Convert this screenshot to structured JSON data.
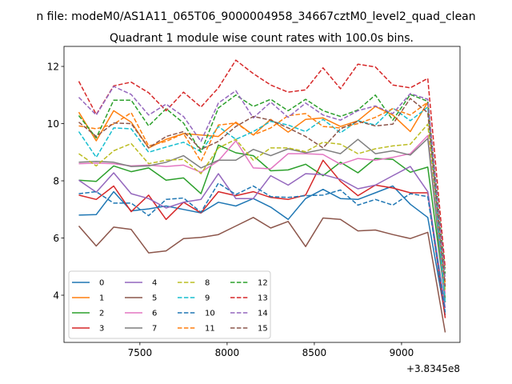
{
  "chart_data": {
    "type": "line",
    "suptitle": "n file: modeM0/AS1A11_065T06_9000004958_34667cztM0_level2_quad_clean",
    "title": "Quadrant 1 module wise count rates with 100.0s bins.",
    "xlabel": "",
    "ylabel": "",
    "x_offset_label": "+3.8345e8",
    "x": [
      7150,
      7250,
      7350,
      7450,
      7550,
      7650,
      7750,
      7850,
      7950,
      8050,
      8150,
      8250,
      8350,
      8450,
      8550,
      8650,
      8750,
      8850,
      8950,
      9050,
      9150,
      9250
    ],
    "xlim": [
      7065,
      9335
    ],
    "ylim": [
      2.35,
      12.7
    ],
    "xticks": [
      7500,
      8000,
      8500,
      9000
    ],
    "xtick_labels": [
      "7500",
      "8000",
      "8500",
      "9000"
    ],
    "yticks": [
      4,
      6,
      8,
      10,
      12
    ],
    "ytick_labels": [
      "4",
      "6",
      "8",
      "10",
      "12"
    ],
    "legend_position": "lower-left",
    "legend_ncol": 4,
    "series": [
      {
        "name": "0",
        "color": "#1f77b4",
        "dash": "solid",
        "values": [
          6.8,
          6.82,
          7.62,
          6.95,
          7.02,
          7.12,
          7.0,
          6.88,
          7.25,
          7.12,
          7.38,
          7.08,
          6.65,
          7.38,
          7.7,
          7.38,
          7.35,
          7.58,
          7.82,
          7.18,
          6.72,
          3.3
        ]
      },
      {
        "name": "1",
        "color": "#ff7f0e",
        "dash": "solid",
        "values": [
          10.4,
          9.4,
          10.45,
          10.05,
          9.15,
          9.45,
          9.65,
          9.6,
          9.55,
          10.05,
          9.6,
          10.15,
          9.7,
          10.15,
          10.2,
          9.9,
          10.1,
          10.6,
          10.3,
          9.72,
          10.75,
          3.75
        ]
      },
      {
        "name": "2",
        "color": "#2ca02c",
        "dash": "solid",
        "values": [
          8.02,
          7.98,
          8.52,
          8.32,
          8.45,
          8.02,
          8.1,
          7.55,
          9.25,
          8.98,
          8.88,
          8.35,
          8.38,
          8.58,
          8.18,
          8.65,
          8.28,
          8.78,
          8.75,
          8.3,
          8.48,
          3.9
        ]
      },
      {
        "name": "3",
        "color": "#d62728",
        "dash": "solid",
        "values": [
          7.5,
          7.35,
          7.82,
          6.92,
          7.5,
          6.65,
          7.25,
          6.88,
          7.62,
          7.48,
          7.62,
          7.42,
          7.35,
          7.5,
          8.72,
          7.98,
          7.48,
          7.85,
          7.75,
          7.58,
          7.58,
          3.2
        ]
      },
      {
        "name": "4",
        "color": "#9467bd",
        "dash": "solid",
        "values": [
          8.02,
          7.6,
          8.28,
          7.55,
          7.38,
          7.05,
          7.25,
          7.35,
          8.25,
          7.38,
          7.38,
          8.18,
          7.85,
          8.25,
          8.22,
          8.05,
          7.72,
          7.85,
          8.18,
          8.5,
          7.62,
          3.55
        ]
      },
      {
        "name": "5",
        "color": "#8c564b",
        "dash": "solid",
        "values": [
          6.42,
          5.72,
          6.38,
          6.3,
          5.48,
          5.55,
          5.98,
          6.02,
          6.12,
          6.42,
          6.72,
          6.35,
          6.58,
          5.7,
          6.7,
          6.65,
          6.25,
          6.28,
          6.12,
          5.98,
          6.2,
          2.7
        ]
      },
      {
        "name": "6",
        "color": "#e377c2",
        "dash": "solid",
        "values": [
          8.6,
          8.62,
          8.6,
          8.52,
          8.55,
          8.5,
          8.55,
          8.3,
          8.7,
          9.4,
          8.45,
          8.42,
          8.95,
          8.95,
          8.92,
          8.58,
          8.78,
          8.72,
          8.82,
          8.95,
          9.58,
          4.05
        ]
      },
      {
        "name": "7",
        "color": "#7f7f7f",
        "dash": "solid",
        "values": [
          8.65,
          8.68,
          8.65,
          8.5,
          8.52,
          8.65,
          8.88,
          8.45,
          8.72,
          8.72,
          9.1,
          8.88,
          9.12,
          8.98,
          9.1,
          8.95,
          9.45,
          8.95,
          9.05,
          8.9,
          9.48,
          3.75
        ]
      },
      {
        "name": "8",
        "color": "#bcbd22",
        "dash": "dashed",
        "values": [
          8.95,
          8.52,
          9.05,
          9.3,
          8.6,
          8.72,
          8.75,
          8.25,
          9.15,
          9.45,
          8.72,
          9.15,
          9.15,
          9.02,
          9.35,
          9.28,
          8.95,
          9.12,
          9.22,
          9.28,
          9.98,
          4.15
        ]
      },
      {
        "name": "9",
        "color": "#17becf",
        "dash": "dashed",
        "values": [
          9.72,
          8.82,
          9.85,
          9.82,
          9.0,
          9.18,
          9.35,
          9.02,
          9.9,
          9.45,
          9.72,
          10.08,
          9.95,
          9.72,
          10.15,
          9.68,
          10.1,
          9.95,
          10.55,
          10.1,
          10.58,
          3.75
        ]
      },
      {
        "name": "10",
        "color": "#1f77b4",
        "dash": "dashed",
        "values": [
          7.55,
          7.62,
          7.22,
          7.22,
          6.78,
          7.35,
          7.4,
          6.9,
          7.92,
          7.52,
          7.82,
          7.45,
          7.42,
          7.48,
          7.5,
          7.68,
          7.15,
          7.35,
          7.15,
          7.55,
          7.45,
          3.4
        ]
      },
      {
        "name": "11",
        "color": "#ff7f0e",
        "dash": "dashed",
        "values": [
          9.92,
          9.82,
          9.98,
          10.38,
          9.22,
          9.38,
          9.65,
          8.68,
          9.95,
          10.02,
          9.6,
          9.85,
          10.28,
          10.35,
          9.9,
          9.85,
          10.0,
          10.22,
          10.52,
          10.3,
          10.75,
          4.45
        ]
      },
      {
        "name": "12",
        "color": "#2ca02c",
        "dash": "dashed",
        "values": [
          10.28,
          9.5,
          10.82,
          10.82,
          9.92,
          10.52,
          10.02,
          9.0,
          10.55,
          11.0,
          10.6,
          10.85,
          10.45,
          10.85,
          10.45,
          10.25,
          10.48,
          11.0,
          10.12,
          11.02,
          10.78,
          4.75
        ]
      },
      {
        "name": "13",
        "color": "#d62728",
        "dash": "dashed",
        "values": [
          11.48,
          10.32,
          11.32,
          11.45,
          11.08,
          10.45,
          11.1,
          10.58,
          11.25,
          12.22,
          11.75,
          11.35,
          11.1,
          11.18,
          11.95,
          11.22,
          12.08,
          11.98,
          11.35,
          11.25,
          11.58,
          4.95
        ]
      },
      {
        "name": "14",
        "color": "#9467bd",
        "dash": "dashed",
        "values": [
          10.92,
          10.3,
          11.3,
          11.02,
          10.3,
          10.68,
          10.25,
          9.38,
          10.72,
          11.15,
          10.2,
          10.75,
          10.22,
          10.72,
          10.3,
          10.12,
          10.45,
          10.62,
          10.35,
          11.05,
          10.85,
          4.55
        ]
      },
      {
        "name": "15",
        "color": "#8c564b",
        "dash": "dashed",
        "values": [
          10.05,
          9.55,
          10.02,
          10.0,
          9.15,
          9.55,
          9.72,
          9.1,
          9.38,
          9.9,
          10.25,
          10.12,
          9.85,
          9.55,
          9.15,
          9.82,
          10.08,
          9.92,
          9.98,
          10.88,
          10.38,
          4.3
        ]
      }
    ]
  }
}
